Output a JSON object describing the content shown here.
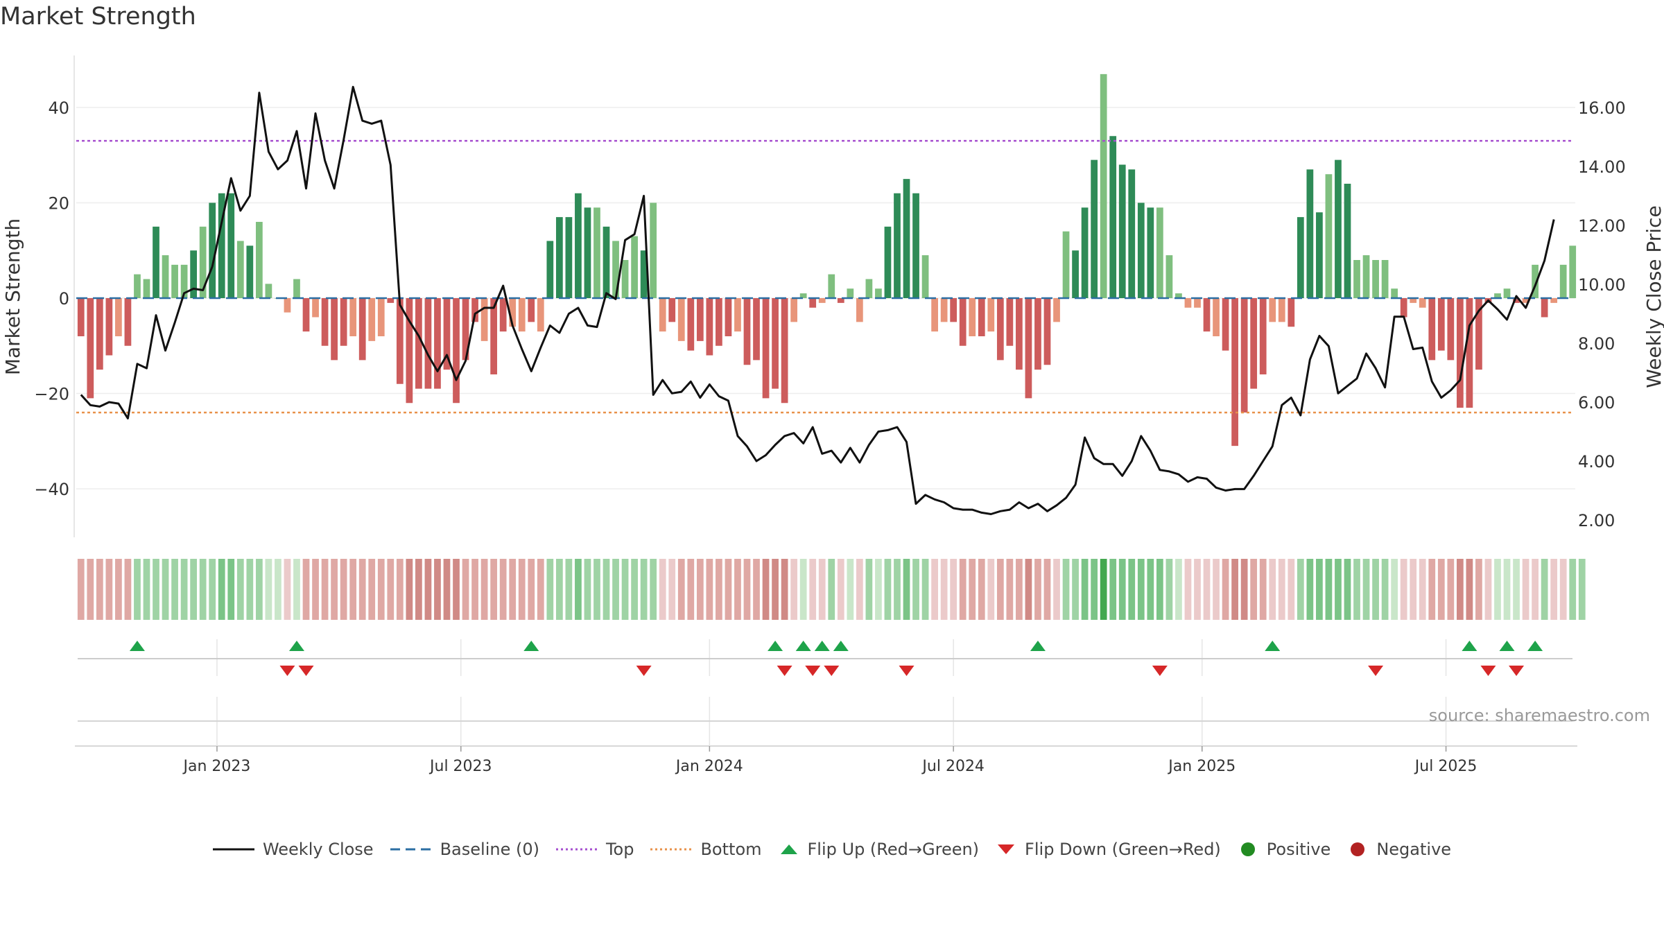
{
  "chart_data": {
    "type": "bar+line",
    "title": "Market Strength",
    "left_axis": {
      "label": "Market Strength",
      "ticks": [
        40,
        20,
        0,
        -20,
        -40
      ],
      "tick_labels": [
        "40",
        "20",
        "0",
        "−20",
        "−40"
      ],
      "range": [
        -51,
        52
      ]
    },
    "right_axis": {
      "label": "Weekly Close Price",
      "ticks": [
        16,
        14,
        12,
        10,
        8,
        6,
        4,
        2
      ],
      "tick_labels": [
        "16.00",
        "14.00",
        "12.00",
        "10.00",
        "8.00",
        "6.00",
        "4.00",
        "2.00"
      ],
      "range": [
        1.0,
        17.8
      ]
    },
    "x_axis": {
      "tick_labels": [
        "Jan 2023",
        "Jul 2023",
        "Jan 2024",
        "Jul 2024",
        "Jan 2025",
        "Jul 2025"
      ],
      "tick_weeks": [
        15,
        41,
        67.5,
        93.5,
        120,
        146
      ]
    },
    "top_line": 33,
    "bottom_line": -24,
    "baseline": 0,
    "strength": [
      -8,
      -21,
      -15,
      -12,
      -8,
      -10,
      5,
      4,
      15,
      9,
      7,
      7,
      10,
      15,
      20,
      22,
      22,
      12,
      11,
      16,
      3,
      0,
      -3,
      4,
      -7,
      -4,
      -10,
      -13,
      -10,
      -8,
      -13,
      -9,
      -8,
      -1,
      -18,
      -22,
      -19,
      -19,
      -19,
      -15,
      -22,
      -13,
      -5,
      -9,
      -16,
      -7,
      -6,
      -7,
      -5,
      -7,
      12,
      17,
      17,
      22,
      19,
      19,
      15,
      12,
      8,
      13,
      10,
      20,
      -7,
      -5,
      -9,
      -11,
      -9,
      -12,
      -10,
      -8,
      -7,
      -14,
      -13,
      -21,
      -19,
      -22,
      -5,
      1,
      -2,
      -1,
      5,
      -1,
      2,
      -5,
      4,
      2,
      15,
      22,
      25,
      22,
      9,
      -7,
      -5,
      -5,
      -10,
      -8,
      -8,
      -7,
      -13,
      -10,
      -15,
      -21,
      -15,
      -14,
      -5,
      14,
      10,
      19,
      29,
      47,
      34,
      28,
      27,
      20,
      19,
      19,
      9,
      1,
      -2,
      -2,
      -7,
      -8,
      -11,
      -31,
      -24,
      -19,
      -16,
      -5,
      -5,
      -6,
      17,
      27,
      18,
      26,
      29,
      24,
      8,
      9,
      8,
      8,
      2,
      -4,
      -1,
      -2,
      -13,
      -11,
      -13,
      -23,
      -23,
      -15,
      -1,
      1,
      2,
      -1,
      -1,
      7,
      -4,
      -1,
      7,
      11
    ],
    "close": [
      6.25,
      5.9,
      5.85,
      6.0,
      5.95,
      5.45,
      7.3,
      7.15,
      8.95,
      7.75,
      8.7,
      9.7,
      9.85,
      9.8,
      10.6,
      12.1,
      13.6,
      12.5,
      13.0,
      16.5,
      14.5,
      13.9,
      14.2,
      15.2,
      13.25,
      15.8,
      14.2,
      13.25,
      14.9,
      16.7,
      15.55,
      15.45,
      15.55,
      14.05,
      9.3,
      8.75,
      8.25,
      7.6,
      7.05,
      7.6,
      6.75,
      7.4,
      9.0,
      9.2,
      9.2,
      9.95,
      8.6,
      7.8,
      7.05,
      7.85,
      8.6,
      8.35,
      9.0,
      9.2,
      8.6,
      8.55,
      9.7,
      9.5,
      11.5,
      11.7,
      13.0,
      6.25,
      6.75,
      6.3,
      6.35,
      6.7,
      6.15,
      6.6,
      6.2,
      6.05,
      4.85,
      4.5,
      4.0,
      4.2,
      4.55,
      4.85,
      4.95,
      4.6,
      5.15,
      4.25,
      4.35,
      3.95,
      4.45,
      3.95,
      4.55,
      5.0,
      5.05,
      5.15,
      4.65,
      2.55,
      2.85,
      2.7,
      2.6,
      2.4,
      2.35,
      2.35,
      2.25,
      2.2,
      2.3,
      2.35,
      2.6,
      2.4,
      2.55,
      2.3,
      2.5,
      2.75,
      3.2,
      4.8,
      4.1,
      3.9,
      3.9,
      3.5,
      4.0,
      4.85,
      4.35,
      3.7,
      3.65,
      3.55,
      3.3,
      3.45,
      3.4,
      3.1,
      3.0,
      3.05,
      3.05,
      3.5,
      4.0,
      4.5,
      5.9,
      6.15,
      5.55,
      7.45,
      8.25,
      7.9,
      6.3,
      6.55,
      6.8,
      7.65,
      7.15,
      6.5,
      8.9,
      8.9,
      7.8,
      7.85,
      6.7,
      6.15,
      6.4,
      6.75,
      8.6,
      9.1,
      9.45,
      9.15,
      8.8,
      9.6,
      9.2,
      9.95,
      10.8,
      12.2
    ],
    "heat_strength": [
      -2,
      -2,
      -2,
      -2,
      -2,
      -2,
      2,
      2,
      2,
      2,
      2,
      2,
      2,
      2,
      2,
      3,
      3,
      2,
      2,
      2,
      1,
      1,
      -1,
      1,
      -2,
      -2,
      -2,
      -2,
      -2,
      -2,
      -2,
      -2,
      -2,
      -2,
      -2,
      -3,
      -3,
      -3,
      -3,
      -3,
      -3,
      -2,
      -2,
      -2,
      -2,
      -2,
      -2,
      -2,
      -2,
      -2,
      2,
      2,
      2,
      3,
      2,
      2,
      2,
      2,
      2,
      2,
      2,
      2,
      -1,
      -1,
      -2,
      -2,
      -2,
      -2,
      -2,
      -2,
      -2,
      -2,
      -2,
      -3,
      -3,
      -3,
      -1,
      1,
      -1,
      -1,
      2,
      -1,
      1,
      -1,
      2,
      1,
      2,
      2,
      3,
      2,
      2,
      -1,
      -1,
      -1,
      -2,
      -2,
      -2,
      -1,
      -2,
      -2,
      -2,
      -3,
      -2,
      -2,
      -1,
      2,
      2,
      3,
      3,
      4,
      3,
      3,
      3,
      3,
      3,
      3,
      2,
      1,
      -1,
      -1,
      -1,
      -1,
      -2,
      -3,
      -3,
      -2,
      -2,
      -1,
      -1,
      -1,
      2,
      3,
      3,
      3,
      3,
      3,
      2,
      2,
      2,
      2,
      1,
      -1,
      -1,
      -1,
      -2,
      -2,
      -2,
      -3,
      -3,
      -2,
      -1,
      1,
      1,
      1,
      -1,
      -1,
      2,
      -1,
      -1,
      2,
      2
    ],
    "flip_up_weeks": [
      6,
      23,
      48,
      74,
      77,
      79,
      81,
      102,
      127,
      148,
      152,
      155
    ],
    "flip_down_weeks": [
      22,
      24,
      60,
      75,
      78,
      80,
      88,
      115,
      138,
      150,
      153
    ],
    "colors": {
      "close_line": "#111111",
      "baseline": "#2b6ea3",
      "top": "#a64fcf",
      "bottom": "#e8914a",
      "pos_strong": "#2e8b57",
      "pos_weak": "#7fbf7f",
      "neg_strong": "#cd5c5c",
      "neg_weak": "#e8957a",
      "flip_up": "#1ea34a",
      "flip_down": "#d62728",
      "positive": "#228b22",
      "negative": "#b22222"
    }
  },
  "source_note": "source: sharemaestro.com",
  "legend": [
    {
      "key": "close",
      "label": "Weekly Close"
    },
    {
      "key": "baseline",
      "label": "Baseline (0)"
    },
    {
      "key": "top",
      "label": "Top"
    },
    {
      "key": "bottom",
      "label": "Bottom"
    },
    {
      "key": "flip_up",
      "label": "Flip Up (Red→Green)"
    },
    {
      "key": "flip_down",
      "label": "Flip Down (Green→Red)"
    },
    {
      "key": "positive",
      "label": "Positive"
    },
    {
      "key": "negative",
      "label": "Negative"
    }
  ]
}
